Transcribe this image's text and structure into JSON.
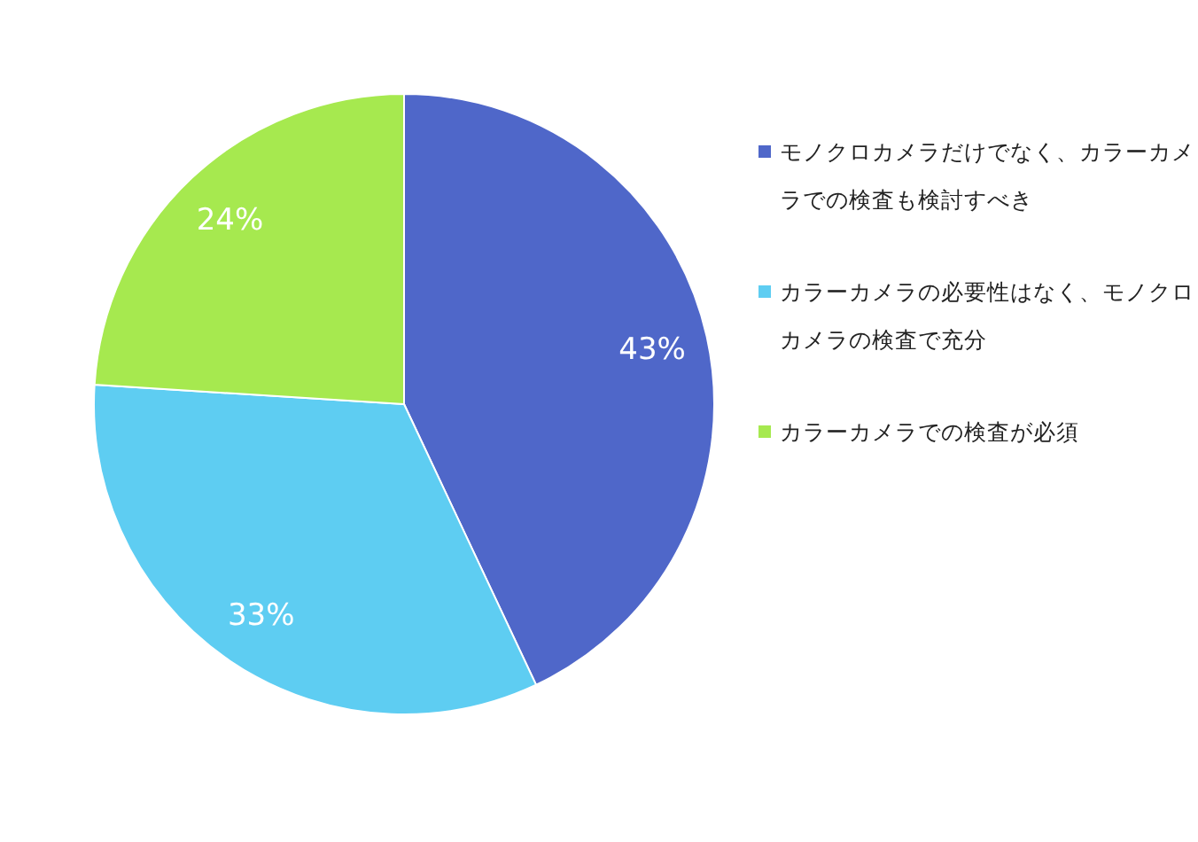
{
  "chart_data": {
    "type": "pie",
    "categories": [
      "モノクロカメラだけでなく、カラーカメラでの検査も検討すべき",
      "カラーカメラの必要性はなく、モノクロカメラの検査で充分",
      "カラーカメラでの検査が必須"
    ],
    "values": [
      43,
      33,
      24
    ],
    "colors": [
      "#4f67c9",
      "#5ecdf2",
      "#a6e94f"
    ],
    "value_labels": [
      "43%",
      "33%",
      "24%"
    ],
    "legend": "right"
  }
}
